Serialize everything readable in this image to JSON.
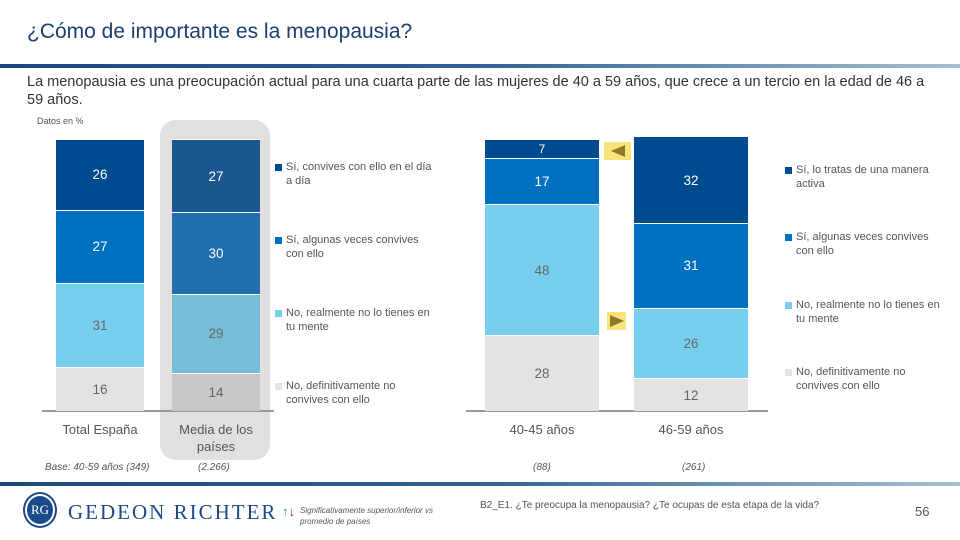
{
  "title": "¿Cómo de importante es la menopausia?",
  "subtitle": "La menopausia es una preocupación actual para una cuarta parte de las mujeres de 40 a 59 años, que crece a un tercio en la edad de 46 a 59 años.",
  "units": "Datos en %",
  "chart_data": [
    {
      "type": "bar",
      "stacked": true,
      "categories": [
        "Total España",
        "Media de los países"
      ],
      "bases": [
        "Base: 40-59 años (349)",
        "(2.266)"
      ],
      "series": [
        {
          "name": "Sí, convives con ello en el día a día",
          "values": [
            26,
            27
          ],
          "colors": [
            "#004a8f",
            "#1a5690"
          ]
        },
        {
          "name": "Sí, algunas veces convives con ello",
          "values": [
            27,
            30
          ],
          "colors": [
            "#0070c0",
            "#1f6fad"
          ]
        },
        {
          "name": "No, realmente no lo tienes en tu mente",
          "values": [
            31,
            29
          ],
          "colors": [
            "#76cfee",
            "#78bdd8"
          ]
        },
        {
          "name": "No, definitivamente no convives con ello",
          "values": [
            16,
            14
          ],
          "colors": [
            "#e3e3e3",
            "#c8c8c8"
          ]
        }
      ],
      "highlighted_category": "Media de los países"
    },
    {
      "type": "bar",
      "stacked": true,
      "categories": [
        "40-45 años",
        "46-59 años"
      ],
      "bases": [
        "(88)",
        "(261)"
      ],
      "series": [
        {
          "name": "Sí, lo tratas de una manera activa",
          "values": [
            7,
            32
          ],
          "colors": [
            "#004a8f",
            "#004a8f"
          ]
        },
        {
          "name": "Sí, algunas veces convives con ello",
          "values": [
            17,
            31
          ],
          "colors": [
            "#0070c0",
            "#0070c0"
          ]
        },
        {
          "name": "No, realmente no lo tienes en tu mente",
          "values": [
            48,
            26
          ],
          "colors": [
            "#76cfee",
            "#76cfee"
          ]
        },
        {
          "name": "No, definitivamente no convives con ello",
          "values": [
            28,
            12
          ],
          "colors": [
            "#e3e3e3",
            "#e3e3e3"
          ]
        }
      ],
      "significance_markers": [
        {
          "series": "Sí, lo tratas de una manera activa",
          "category": "40-45 años",
          "direction": "lower"
        },
        {
          "series": "No, realmente no lo tienes en tu mente",
          "category": "40-45 años",
          "direction": "higher"
        }
      ]
    }
  ],
  "footer": {
    "logo": "GEDEON RICHTER",
    "significance_note": "Significativamente superior/inferior vs promedio de países",
    "question": "B2_E1. ¿Te preocupa la menopausia? ¿Te ocupas de esta etapa de la vida?",
    "page": "56",
    "marker_color": "#fbe27a",
    "up_color": "#2ea84a",
    "down_color": "#c0143c"
  }
}
